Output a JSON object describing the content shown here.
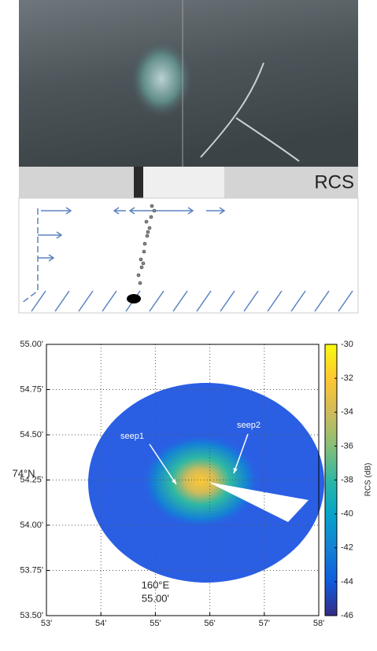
{
  "schematic": {
    "label": "RCS"
  },
  "chart_data": {
    "type": "radar-map",
    "ylim": [
      53.5,
      55
    ],
    "yticks": [
      {
        "value": 53.5,
        "label": "53.50'"
      },
      {
        "value": 53.75,
        "label": "53.75'"
      },
      {
        "value": 54,
        "label": "54.00'"
      },
      {
        "value": 54.25,
        "label": "54.25'"
      },
      {
        "value": 54.5,
        "label": "54.50'"
      },
      {
        "value": 54.75,
        "label": "54.75'"
      },
      {
        "value": 55,
        "label": "55.00'"
      }
    ],
    "xlim": [
      53,
      58
    ],
    "xticks": [
      {
        "value": 53,
        "label": "53'"
      },
      {
        "value": 54,
        "label": "54'"
      },
      {
        "value": 55,
        "label": "55'"
      },
      {
        "value": 56,
        "label": "56'"
      },
      {
        "value": 57,
        "label": "57'"
      },
      {
        "value": 58,
        "label": "58'"
      }
    ],
    "y_label": [
      "74°N"
    ],
    "x_label": [
      "160°E",
      "55.00'"
    ],
    "grid": true,
    "annotations": [
      "seep1",
      "seep2"
    ],
    "colorbar": {
      "label": "RCS (dB)",
      "lim": [
        -46,
        -30
      ],
      "ticks": [
        -46,
        -44,
        -42,
        -40,
        -38,
        -36,
        -34,
        -32,
        -30
      ],
      "colormap": [
        "#352a87",
        "#0f5cdd",
        "#1481d6",
        "#06a4ca",
        "#2eb7a4",
        "#87bf77",
        "#d1bb59",
        "#fec832",
        "#f9fb0e"
      ]
    }
  }
}
